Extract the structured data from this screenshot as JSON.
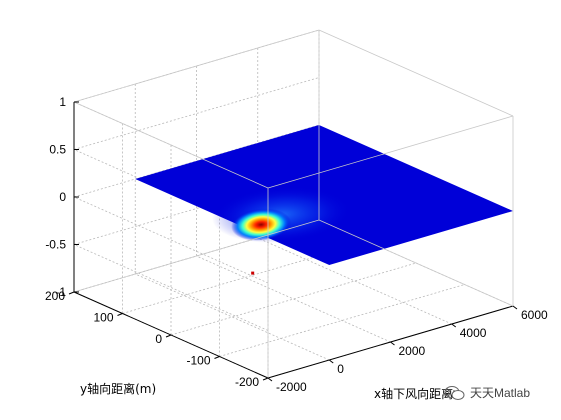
{
  "chart_data": {
    "type": "surface",
    "title": "",
    "xlabel": "x轴下风向距离",
    "ylabel": "y轴向距离(m)",
    "zlabel": "",
    "xlim": [
      -2000,
      6000
    ],
    "ylim": [
      -200,
      200
    ],
    "zlim": [
      -1,
      1
    ],
    "x_ticks": [
      "-2000",
      "0",
      "2000",
      "4000",
      "6000"
    ],
    "y_ticks": [
      "-200",
      "-100",
      "0",
      "100",
      "200"
    ],
    "z_ticks": [
      "-1",
      "-0.5",
      "0",
      "0.5",
      "1"
    ],
    "grid": true,
    "colormap": "jet",
    "surface": {
      "z_plane": 0,
      "x_extent": [
        0,
        6000
      ],
      "y_extent": [
        -200,
        200
      ],
      "plume_peak_x": 400,
      "plume_peak_y": -30,
      "background_color": "#0000d8"
    },
    "marker": {
      "x": -600,
      "y": -80,
      "z": -0.3,
      "color": "#cc0000"
    }
  },
  "watermark": {
    "text": "天天Matlab",
    "icon": "wechat-icon"
  }
}
